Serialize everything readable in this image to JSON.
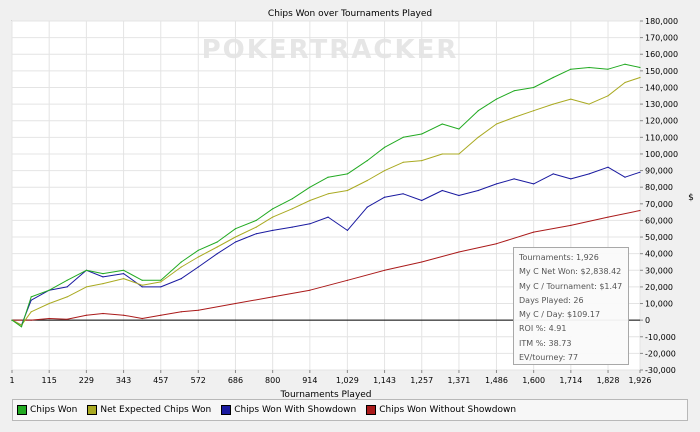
{
  "chart_data": {
    "type": "line",
    "title": "Chips Won over Tournaments Played",
    "xlabel": "Tournaments Played",
    "ylabel": "$",
    "watermark": "POKERTRACKER",
    "xlim": [
      1,
      1926
    ],
    "ylim": [
      -30000,
      180000
    ],
    "x_ticks": [
      "1",
      "115",
      "229",
      "343",
      "457",
      "572",
      "686",
      "800",
      "914",
      "1,029",
      "1,143",
      "1,257",
      "1,371",
      "1,486",
      "1,600",
      "1,714",
      "1,828",
      "1,926"
    ],
    "y_ticks": [
      "180,000",
      "170,000",
      "160,000",
      "150,000",
      "140,000",
      "130,000",
      "120,000",
      "110,000",
      "100,000",
      "90,000",
      "80,000",
      "70,000",
      "60,000",
      "50,000",
      "40,000",
      "30,000",
      "20,000",
      "10,000",
      "0",
      "-10,000",
      "-20,000",
      "-30,000"
    ],
    "grid": true,
    "legend_position": "bottom",
    "series": [
      {
        "name": "Chips Won",
        "color": "#22aa22",
        "x": [
          1,
          30,
          60,
          115,
          170,
          229,
          280,
          343,
          400,
          457,
          520,
          572,
          630,
          686,
          750,
          800,
          860,
          914,
          970,
          1029,
          1090,
          1143,
          1200,
          1257,
          1320,
          1371,
          1430,
          1486,
          1540,
          1600,
          1660,
          1714,
          1770,
          1828,
          1880,
          1926
        ],
        "values": [
          0,
          -4000,
          14000,
          18000,
          24000,
          30000,
          28000,
          30000,
          24000,
          24000,
          35000,
          42000,
          47000,
          55000,
          60000,
          67000,
          73000,
          80000,
          86000,
          88000,
          96000,
          104000,
          110000,
          112000,
          118000,
          115000,
          126000,
          133000,
          138000,
          140000,
          146000,
          151000,
          152000,
          151000,
          154000,
          152000
        ]
      },
      {
        "name": "Net Expected Chips Won",
        "color": "#aaaa22",
        "x": [
          1,
          30,
          60,
          115,
          170,
          229,
          280,
          343,
          400,
          457,
          520,
          572,
          630,
          686,
          750,
          800,
          860,
          914,
          970,
          1029,
          1090,
          1143,
          1200,
          1257,
          1320,
          1371,
          1430,
          1486,
          1540,
          1600,
          1660,
          1714,
          1770,
          1828,
          1880,
          1926
        ],
        "values": [
          0,
          -3000,
          5000,
          10000,
          14000,
          20000,
          22000,
          25000,
          21000,
          23000,
          32000,
          38000,
          44000,
          50000,
          56000,
          62000,
          67000,
          72000,
          76000,
          78000,
          84000,
          90000,
          95000,
          96000,
          100000,
          100000,
          110000,
          118000,
          122000,
          126000,
          130000,
          133000,
          130000,
          135000,
          143000,
          146000
        ]
      },
      {
        "name": "Chips Won With Showdown",
        "color": "#1a1aa0",
        "x": [
          1,
          30,
          60,
          115,
          170,
          229,
          280,
          343,
          400,
          457,
          520,
          572,
          630,
          686,
          750,
          800,
          860,
          914,
          970,
          1029,
          1090,
          1143,
          1200,
          1257,
          1320,
          1371,
          1430,
          1486,
          1540,
          1600,
          1660,
          1714,
          1770,
          1828,
          1880,
          1926
        ],
        "values": [
          0,
          -3000,
          12000,
          18000,
          20000,
          30000,
          26000,
          28000,
          20000,
          20000,
          25000,
          32000,
          40000,
          47000,
          52000,
          54000,
          56000,
          58000,
          62000,
          54000,
          68000,
          74000,
          76000,
          72000,
          78000,
          75000,
          78000,
          82000,
          85000,
          82000,
          88000,
          85000,
          88000,
          92000,
          86000,
          89000
        ]
      },
      {
        "name": "Chips Won Without Showdown",
        "color": "#aa1a1a",
        "x": [
          1,
          60,
          115,
          170,
          229,
          280,
          343,
          400,
          457,
          520,
          572,
          686,
          800,
          914,
          1029,
          1143,
          1257,
          1371,
          1486,
          1600,
          1714,
          1828,
          1926
        ],
        "values": [
          0,
          0,
          1000,
          500,
          3000,
          4000,
          3000,
          1000,
          3000,
          5000,
          6000,
          10000,
          14000,
          18000,
          24000,
          30000,
          35000,
          41000,
          46000,
          53000,
          57000,
          62000,
          66000
        ]
      }
    ]
  },
  "legend": {
    "items": [
      {
        "label": "Chips Won",
        "color": "#22aa22"
      },
      {
        "label": "Net Expected Chips Won",
        "color": "#aaaa22"
      },
      {
        "label": "Chips Won With Showdown",
        "color": "#1a1aa0"
      },
      {
        "label": "Chips Won Without Showdown",
        "color": "#aa1a1a"
      }
    ]
  },
  "stats": {
    "rows": [
      "Tournaments: 1,926",
      "My C Net Won: $2,838.42",
      "My C / Tournament: $1.47",
      "Days Played: 26",
      "My C / Day: $109.17",
      "ROI %: 4.91",
      "ITM %: 38.73",
      "EV/tourney: 77"
    ]
  }
}
